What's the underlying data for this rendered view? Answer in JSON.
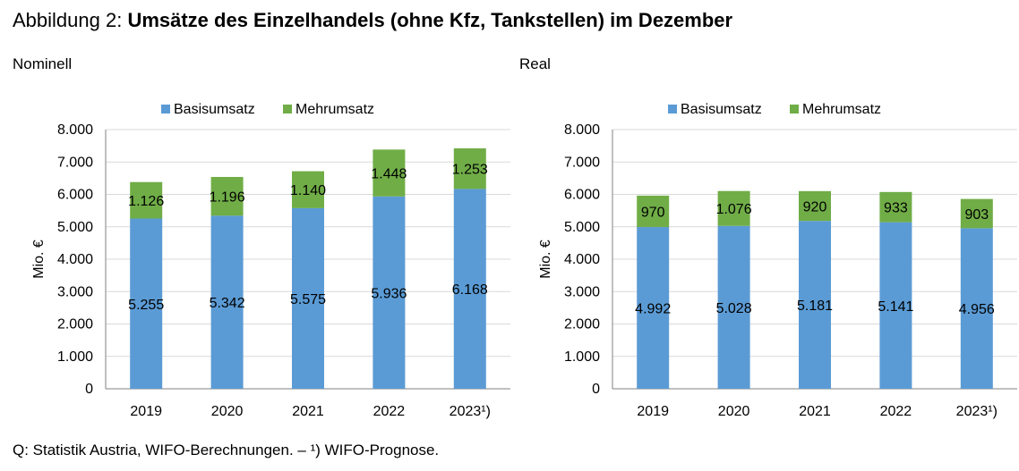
{
  "figure": {
    "prefix": "Abbildung 2: ",
    "title": "Umsätze des Einzelhandels (ohne Kfz, Tankstellen) im Dezember",
    "footnote": "Q: Statistik Austria, WIFO-Berechnungen. – ¹) WIFO-Prognose."
  },
  "colors": {
    "basis": "#5B9BD5",
    "mehr": "#70AD47",
    "grid": "#d9d9d9",
    "axis": "#808080"
  },
  "chart_data": [
    {
      "type": "bar",
      "stacked": true,
      "subtitle": "Nominell",
      "ylabel": "Mio. €",
      "xlabel": "",
      "ylim": [
        0,
        8000
      ],
      "yticks": [
        "0",
        "1.000",
        "2.000",
        "3.000",
        "4.000",
        "5.000",
        "6.000",
        "7.000",
        "8.000"
      ],
      "legend_position": "top",
      "grid": true,
      "categories": [
        "2019",
        "2020",
        "2021",
        "2022",
        "2023¹)"
      ],
      "series": [
        {
          "name": "Basisumsatz",
          "values": [
            5255,
            5342,
            5575,
            5936,
            6168
          ],
          "labels": [
            "5.255",
            "5.342",
            "5.575",
            "5.936",
            "6.168"
          ]
        },
        {
          "name": "Mehrumsatz",
          "values": [
            1126,
            1196,
            1140,
            1448,
            1253
          ],
          "labels": [
            "1.126",
            "1.196",
            "1.140",
            "1.448",
            "1.253"
          ]
        }
      ]
    },
    {
      "type": "bar",
      "stacked": true,
      "subtitle": "Real",
      "ylabel": "Mio. €",
      "xlabel": "",
      "ylim": [
        0,
        8000
      ],
      "yticks": [
        "0",
        "1.000",
        "2.000",
        "3.000",
        "4.000",
        "5.000",
        "6.000",
        "7.000",
        "8.000"
      ],
      "legend_position": "top",
      "grid": true,
      "categories": [
        "2019",
        "2020",
        "2021",
        "2022",
        "2023¹)"
      ],
      "series": [
        {
          "name": "Basisumsatz",
          "values": [
            4992,
            5028,
            5181,
            5141,
            4956
          ],
          "labels": [
            "4.992",
            "5.028",
            "5.181",
            "5.141",
            "4.956"
          ]
        },
        {
          "name": "Mehrumsatz",
          "values": [
            970,
            1076,
            920,
            933,
            903
          ],
          "labels": [
            "970",
            "1.076",
            "920",
            "933",
            "903"
          ]
        }
      ]
    }
  ]
}
